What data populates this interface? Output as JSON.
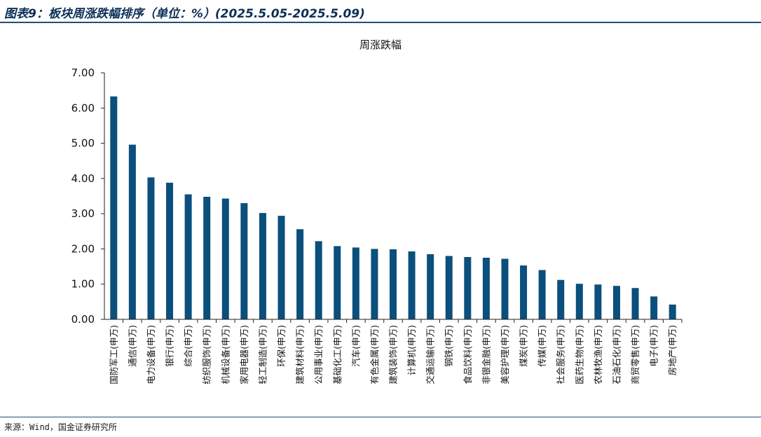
{
  "figure": {
    "title": "图表9：板块周涨跌幅排序（单位：%）(2025.5.05-2025.5.09)",
    "source": "来源：Wind，国金证券研究所"
  },
  "colors": {
    "bar": "#0b4f7c",
    "accent": "#1f4e79"
  },
  "chart_data": {
    "type": "bar",
    "title": "周涨跌幅",
    "xlabel": "",
    "ylabel": "",
    "ylim": [
      0,
      7
    ],
    "yticks": [
      "0.00",
      "1.00",
      "2.00",
      "3.00",
      "4.00",
      "5.00",
      "6.00",
      "7.00"
    ],
    "grid": false,
    "categories": [
      "国防军工(申万)",
      "通信(申万)",
      "电力设备(申万)",
      "银行(申万)",
      "综合(申万)",
      "纺织服饰(申万)",
      "机械设备(申万)",
      "家用电器(申万)",
      "轻工制造(申万)",
      "环保(申万)",
      "建筑材料(申万)",
      "公用事业(申万)",
      "基础化工(申万)",
      "汽车(申万)",
      "有色金属(申万)",
      "建筑装饰(申万)",
      "计算机(申万)",
      "交通运输(申万)",
      "钢铁(申万)",
      "食品饮料(申万)",
      "非银金融(申万)",
      "美容护理(申万)",
      "煤炭(申万)",
      "传媒(申万)",
      "社会服务(申万)",
      "医药生物(申万)",
      "农林牧渔(申万)",
      "石油石化(申万)",
      "商贸零售(申万)",
      "电子(申万)",
      "房地产(申万)"
    ],
    "values": [
      6.33,
      4.96,
      4.03,
      3.88,
      3.55,
      3.48,
      3.43,
      3.3,
      3.02,
      2.94,
      2.56,
      2.22,
      2.08,
      2.04,
      2.0,
      1.99,
      1.93,
      1.85,
      1.8,
      1.77,
      1.75,
      1.72,
      1.53,
      1.4,
      1.12,
      1.01,
      0.99,
      0.95,
      0.89,
      0.65,
      0.42
    ]
  }
}
